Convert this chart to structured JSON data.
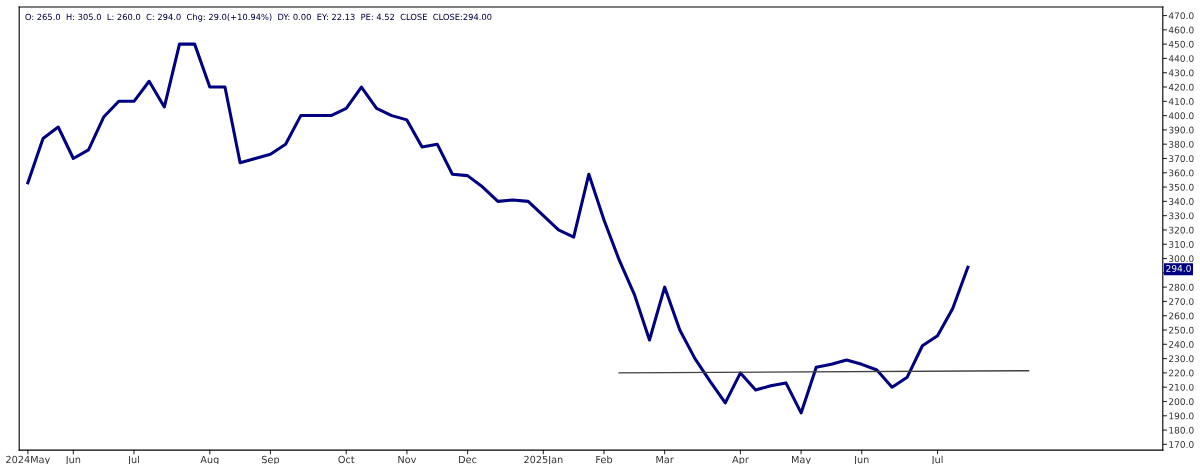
{
  "chart_data": {
    "type": "line",
    "x": [
      "2024-05-17",
      "2024-05-24",
      "2024-05-31",
      "2024-06-07",
      "2024-06-14",
      "2024-06-21",
      "2024-06-28",
      "2024-07-05",
      "2024-07-12",
      "2024-07-19",
      "2024-07-26",
      "2024-08-02",
      "2024-08-09",
      "2024-08-16",
      "2024-08-23",
      "2024-08-30",
      "2024-09-06",
      "2024-09-13",
      "2024-09-20",
      "2024-09-27",
      "2024-10-04",
      "2024-10-11",
      "2024-10-18",
      "2024-10-25",
      "2024-11-01",
      "2024-11-08",
      "2024-11-15",
      "2024-11-22",
      "2024-11-29",
      "2024-12-06",
      "2024-12-13",
      "2024-12-20",
      "2024-12-27",
      "2025-01-03",
      "2025-01-10",
      "2025-01-17",
      "2025-01-24",
      "2025-01-31",
      "2025-02-07",
      "2025-02-14",
      "2025-02-21",
      "2025-02-28",
      "2025-03-07",
      "2025-03-14",
      "2025-03-21",
      "2025-03-28",
      "2025-04-04",
      "2025-04-11",
      "2025-04-18",
      "2025-04-25",
      "2025-05-02",
      "2025-05-09",
      "2025-05-16",
      "2025-05-23",
      "2025-05-30",
      "2025-06-06",
      "2025-06-13",
      "2025-06-20",
      "2025-06-27",
      "2025-07-04",
      "2025-07-11",
      "2025-07-18",
      "2025-07-25"
    ],
    "series": [
      {
        "color": "#000080",
        "values": [
          353,
          384,
          392,
          370,
          376,
          399,
          410,
          410,
          424,
          406,
          450,
          450,
          420,
          420,
          367,
          370,
          373,
          380,
          400,
          400,
          400,
          405,
          420,
          405,
          400,
          397,
          378,
          380,
          359,
          358,
          350,
          340,
          341,
          340,
          330,
          320,
          315,
          359,
          327,
          299,
          275,
          243,
          280,
          250,
          230,
          214,
          199,
          220,
          208,
          211,
          213,
          192,
          224,
          226,
          229,
          226,
          222,
          210,
          217,
          239,
          246,
          265,
          294
        ]
      },
      {
        "type": "line",
        "color": "#404040",
        "x": [
          "2025-02-14",
          "2025-08-22"
        ],
        "values": [
          220,
          221.5
        ]
      }
    ],
    "xlim": [
      "2024-05-13",
      "2025-10-23"
    ],
    "xticks": [
      {
        "value": "2024-05-17",
        "label": "2024May"
      },
      {
        "value": "2024-06-07",
        "label": "Jun"
      },
      {
        "value": "2024-07-05",
        "label": "Jul"
      },
      {
        "value": "2024-08-09",
        "label": "Aug"
      },
      {
        "value": "2024-09-06",
        "label": "Sep"
      },
      {
        "value": "2024-10-11",
        "label": "Oct"
      },
      {
        "value": "2024-11-08",
        "label": "Nov"
      },
      {
        "value": "2024-12-06",
        "label": "Dec"
      },
      {
        "value": "2025-01-10",
        "label": "2025Jan"
      },
      {
        "value": "2025-02-07",
        "label": "Feb"
      },
      {
        "value": "2025-03-07",
        "label": "Mar"
      },
      {
        "value": "2025-04-11",
        "label": "Apr"
      },
      {
        "value": "2025-05-09",
        "label": "May"
      },
      {
        "value": "2025-06-06",
        "label": "Jun"
      },
      {
        "value": "2025-07-11",
        "label": "Jul"
      }
    ],
    "ylim": [
      166,
      476
    ],
    "yticks": [
      {
        "value": 170,
        "label": "170.0"
      },
      {
        "value": 180,
        "label": "180.0"
      },
      {
        "value": 190,
        "label": "190.0"
      },
      {
        "value": 200,
        "label": "200.0"
      },
      {
        "value": 210,
        "label": "210.0"
      },
      {
        "value": 220,
        "label": "220.0"
      },
      {
        "value": 230,
        "label": "230.0"
      },
      {
        "value": 240,
        "label": "240.0"
      },
      {
        "value": 250,
        "label": "250.0"
      },
      {
        "value": 260,
        "label": "260.0"
      },
      {
        "value": 270,
        "label": "270.0"
      },
      {
        "value": 280,
        "label": "280.0"
      },
      {
        "value": 290,
        "label": null
      },
      {
        "value": 300,
        "label": "300.0"
      },
      {
        "value": 310,
        "label": "310.0"
      },
      {
        "value": 320,
        "label": "320.0"
      },
      {
        "value": 330,
        "label": "330.0"
      },
      {
        "value": 340,
        "label": "340.0"
      },
      {
        "value": 350,
        "label": "350.0"
      },
      {
        "value": 360,
        "label": "360.0"
      },
      {
        "value": 370,
        "label": "370.0"
      },
      {
        "value": 380,
        "label": "380.0"
      },
      {
        "value": 390,
        "label": "390.0"
      },
      {
        "value": 400,
        "label": "400.0"
      },
      {
        "value": 410,
        "label": "410.0"
      },
      {
        "value": 420,
        "label": "420.0"
      },
      {
        "value": 430,
        "label": "430.0"
      },
      {
        "value": 440,
        "label": "440.0"
      },
      {
        "value": 450,
        "label": "450.0"
      },
      {
        "value": 460,
        "label": "460.0"
      },
      {
        "value": 470,
        "label": "470.0"
      }
    ],
    "annotations": [
      "O: 265.0  H: 305.0  L: 260.0  C: 294.0  Chg: 29.0(+10.94%)  DY: 0.00  EY: 22.13  PE: 4.52  CLOSE  CLOSE:294.00",
      "294.0"
    ],
    "grid": false,
    "legend": false,
    "marker": "none",
    "line_style": "solid"
  }
}
